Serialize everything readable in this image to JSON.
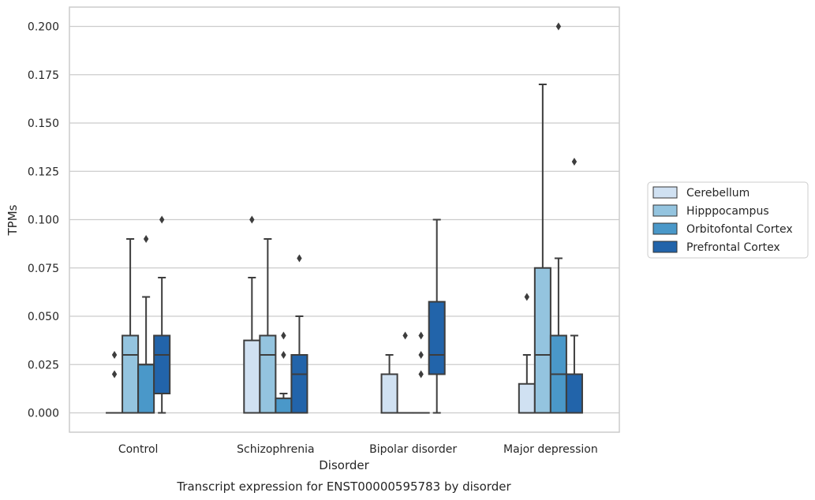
{
  "chart_data": {
    "type": "box",
    "title": "",
    "caption": "Transcript expression for ENST00000595783 by disorder",
    "xlabel": "Disorder",
    "ylabel": "TPMs",
    "ylim": [
      -0.01,
      0.21
    ],
    "yticks": [
      "0.000",
      "0.025",
      "0.050",
      "0.075",
      "0.100",
      "0.125",
      "0.150",
      "0.175",
      "0.200"
    ],
    "ytick_values": [
      0,
      0.025,
      0.05,
      0.075,
      0.1,
      0.125,
      0.15,
      0.175,
      0.2
    ],
    "grid": "horizontal",
    "legend_position": "right",
    "categories": [
      "Control",
      "Schizophrenia",
      "Bipolar disorder",
      "Major depression"
    ],
    "series": [
      {
        "name": "Cerebellum",
        "color": "#d0e1f2",
        "boxes": [
          {
            "q1": 0,
            "median": 0,
            "q3": 0,
            "whisker_low": 0,
            "whisker_high": 0,
            "outliers": [
              0.02,
              0.03
            ]
          },
          {
            "q1": 0,
            "median": 0,
            "q3": 0.0375,
            "whisker_low": 0,
            "whisker_high": 0.07,
            "outliers": [
              0.1
            ]
          },
          {
            "q1": 0,
            "median": 0,
            "q3": 0.02,
            "whisker_low": 0,
            "whisker_high": 0.03,
            "outliers": []
          },
          {
            "q1": 0,
            "median": 0,
            "q3": 0.015,
            "whisker_low": 0,
            "whisker_high": 0.03,
            "outliers": [
              0.06
            ]
          }
        ]
      },
      {
        "name": "Hipppocampus",
        "color": "#94c4df",
        "boxes": [
          {
            "q1": 0,
            "median": 0.03,
            "q3": 0.04,
            "whisker_low": 0,
            "whisker_high": 0.09,
            "outliers": []
          },
          {
            "q1": 0,
            "median": 0.03,
            "q3": 0.04,
            "whisker_low": 0,
            "whisker_high": 0.09,
            "outliers": []
          },
          {
            "q1": 0,
            "median": 0,
            "q3": 0,
            "whisker_low": 0,
            "whisker_high": 0,
            "outliers": [
              0.04
            ]
          },
          {
            "q1": 0,
            "median": 0.03,
            "q3": 0.075,
            "whisker_low": 0,
            "whisker_high": 0.17,
            "outliers": []
          }
        ]
      },
      {
        "name": "Orbitofontal Cortex",
        "color": "#4a98c9",
        "boxes": [
          {
            "q1": 0,
            "median": 0.025,
            "q3": 0.025,
            "whisker_low": 0,
            "whisker_high": 0.06,
            "outliers": [
              0.09
            ]
          },
          {
            "q1": 0,
            "median": 0,
            "q3": 0.0075,
            "whisker_low": 0,
            "whisker_high": 0.01,
            "outliers": [
              0.03,
              0.04
            ]
          },
          {
            "q1": 0,
            "median": 0,
            "q3": 0,
            "whisker_low": 0,
            "whisker_high": 0,
            "outliers": [
              0.02,
              0.03,
              0.04
            ]
          },
          {
            "q1": 0,
            "median": 0.02,
            "q3": 0.04,
            "whisker_low": 0,
            "whisker_high": 0.08,
            "outliers": [
              0.2
            ]
          }
        ]
      },
      {
        "name": "Prefrontal Cortex",
        "color": "#2264aa",
        "boxes": [
          {
            "q1": 0.01,
            "median": 0.03,
            "q3": 0.04,
            "whisker_low": 0,
            "whisker_high": 0.07,
            "outliers": [
              0.1
            ]
          },
          {
            "q1": 0,
            "median": 0.02,
            "q3": 0.03,
            "whisker_low": 0,
            "whisker_high": 0.05,
            "outliers": [
              0.08
            ]
          },
          {
            "q1": 0.02,
            "median": 0.03,
            "q3": 0.0575,
            "whisker_low": 0,
            "whisker_high": 0.1,
            "outliers": []
          },
          {
            "q1": 0,
            "median": 0,
            "q3": 0.02,
            "whisker_low": 0,
            "whisker_high": 0.04,
            "outliers": [
              0.13
            ]
          }
        ]
      }
    ]
  }
}
